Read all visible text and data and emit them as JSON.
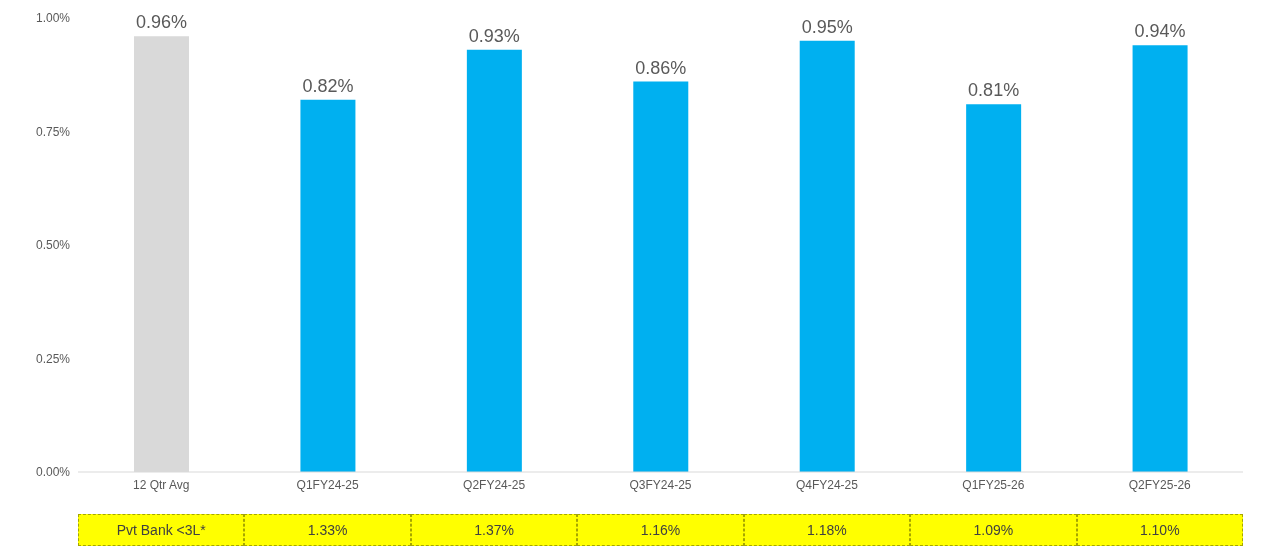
{
  "chart_data": {
    "type": "bar",
    "categories": [
      "12 Qtr Avg",
      "Q1FY24-25",
      "Q2FY24-25",
      "Q3FY24-25",
      "Q4FY24-25",
      "Q1FY25-26",
      "Q2FY25-26"
    ],
    "values": [
      0.96,
      0.82,
      0.93,
      0.86,
      0.95,
      0.81,
      0.94
    ],
    "colors": [
      "#d9d9d9",
      "#00b0f0",
      "#00b0f0",
      "#00b0f0",
      "#00b0f0",
      "#00b0f0",
      "#00b0f0"
    ],
    "value_labels": [
      "0.96%",
      "0.82%",
      "0.93%",
      "0.86%",
      "0.95%",
      "0.81%",
      "0.94%"
    ],
    "ylim": [
      0,
      1
    ],
    "yticks": [
      {
        "value": 0,
        "label": "0.00%"
      },
      {
        "value": 0.25,
        "label": "0.25%"
      },
      {
        "value": 0.5,
        "label": "0.50%"
      },
      {
        "value": 0.75,
        "label": "0.75%"
      },
      {
        "value": 1,
        "label": "1.00%"
      }
    ],
    "grid": false,
    "legend": false,
    "annotations": [
      "Pvt Bank <3L*",
      "1.33%",
      "1.37%",
      "1.16%",
      "1.18%",
      "1.09%",
      "1.10%"
    ]
  }
}
